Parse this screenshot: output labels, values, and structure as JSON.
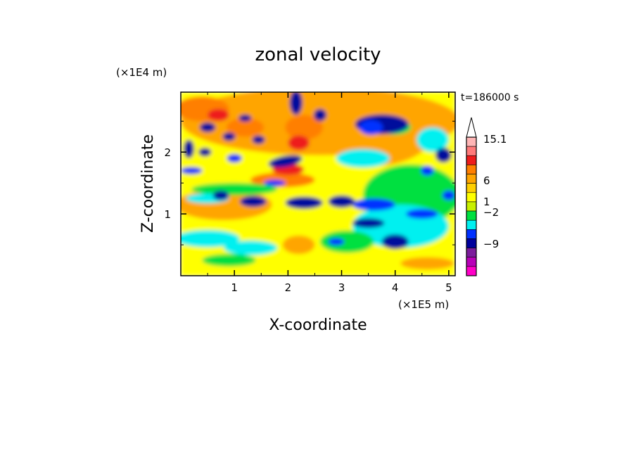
{
  "chart_data": {
    "type": "heatmap",
    "title": "zonal velocity",
    "time_label": "t=186000 s",
    "xlabel": "X-coordinate",
    "ylabel": "Z-coordinate",
    "x_scale_label": "(×1E5 m)",
    "y_scale_label": "(×1E4 m)",
    "x_ticks": [
      "1",
      "2",
      "3",
      "4",
      "5"
    ],
    "y_ticks": [
      "1",
      "2"
    ],
    "xlim": [
      0,
      5.12
    ],
    "ylim": [
      0,
      2.97
    ],
    "colorbar": {
      "labels": [
        {
          "value": 15.1,
          "text": "15.1"
        },
        {
          "value": 6,
          "text": "6"
        },
        {
          "value": 1,
          "text": "1"
        },
        {
          "value": -2,
          "text": "−2"
        },
        {
          "value": -9,
          "text": "−9"
        }
      ],
      "levels": [
        {
          "color": "#ffb6b6"
        },
        {
          "color": "#ff7a7a"
        },
        {
          "color": "#ee1c1c"
        },
        {
          "color": "#ff7f00"
        },
        {
          "color": "#ffa500"
        },
        {
          "color": "#ffcf00"
        },
        {
          "color": "#ffff00"
        },
        {
          "color": "#c8f000"
        },
        {
          "color": "#00e040"
        },
        {
          "color": "#00f0f0"
        },
        {
          "color": "#0030ff"
        },
        {
          "color": "#00009c"
        },
        {
          "color": "#7c1c9c"
        },
        {
          "color": "#b800b8"
        },
        {
          "color": "#ff00c8"
        }
      ]
    },
    "field_colors": {
      "dark_blue": "#00109c",
      "blue": "#0030ff",
      "cyan": "#00f0f0",
      "green": "#00e040",
      "yellow": "#ffff00",
      "orange": "#ff7f00",
      "light_orange": "#ffa500",
      "red": "#ee1c1c"
    }
  }
}
